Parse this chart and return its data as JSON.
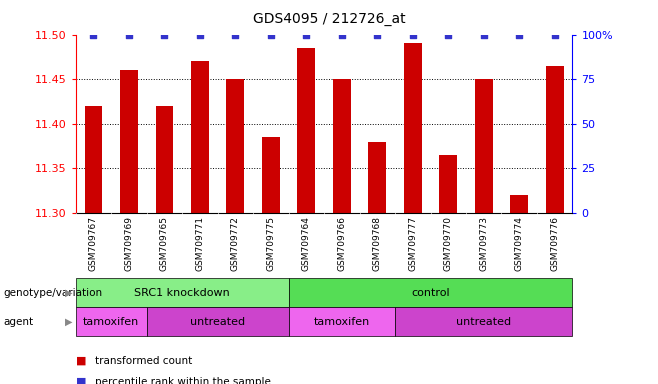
{
  "title": "GDS4095 / 212726_at",
  "samples": [
    "GSM709767",
    "GSM709769",
    "GSM709765",
    "GSM709771",
    "GSM709772",
    "GSM709775",
    "GSM709764",
    "GSM709766",
    "GSM709768",
    "GSM709777",
    "GSM709770",
    "GSM709773",
    "GSM709774",
    "GSM709776"
  ],
  "bar_values": [
    11.42,
    11.46,
    11.42,
    11.47,
    11.45,
    11.385,
    11.485,
    11.45,
    11.38,
    11.49,
    11.365,
    11.45,
    11.32,
    11.465
  ],
  "dot_values": [
    100,
    100,
    100,
    100,
    100,
    100,
    100,
    100,
    100,
    100,
    100,
    100,
    100,
    100
  ],
  "ymin": 11.3,
  "ymax": 11.5,
  "y2min": 0,
  "y2max": 100,
  "yticks": [
    11.3,
    11.35,
    11.4,
    11.45,
    11.5
  ],
  "y2ticks": [
    0,
    25,
    50,
    75,
    100
  ],
  "y2ticklabels": [
    "0",
    "25",
    "50",
    "75",
    "100%"
  ],
  "bar_color": "#cc0000",
  "dot_color": "#3333cc",
  "bg_color": "#ffffff",
  "xtick_bg_color": "#d8d8d8",
  "groups": [
    {
      "label": "SRC1 knockdown",
      "start": 0,
      "end": 6,
      "color": "#88ee88"
    },
    {
      "label": "control",
      "start": 6,
      "end": 14,
      "color": "#55dd55"
    }
  ],
  "agents": [
    {
      "label": "tamoxifen",
      "start": 0,
      "end": 2,
      "color": "#ee66ee"
    },
    {
      "label": "untreated",
      "start": 2,
      "end": 6,
      "color": "#cc44cc"
    },
    {
      "label": "tamoxifen",
      "start": 6,
      "end": 9,
      "color": "#ee66ee"
    },
    {
      "label": "untreated",
      "start": 9,
      "end": 14,
      "color": "#cc44cc"
    }
  ],
  "genotype_label": "genotype/variation",
  "agent_label": "agent",
  "legend_bar": "transformed count",
  "legend_dot": "percentile rank within the sample"
}
